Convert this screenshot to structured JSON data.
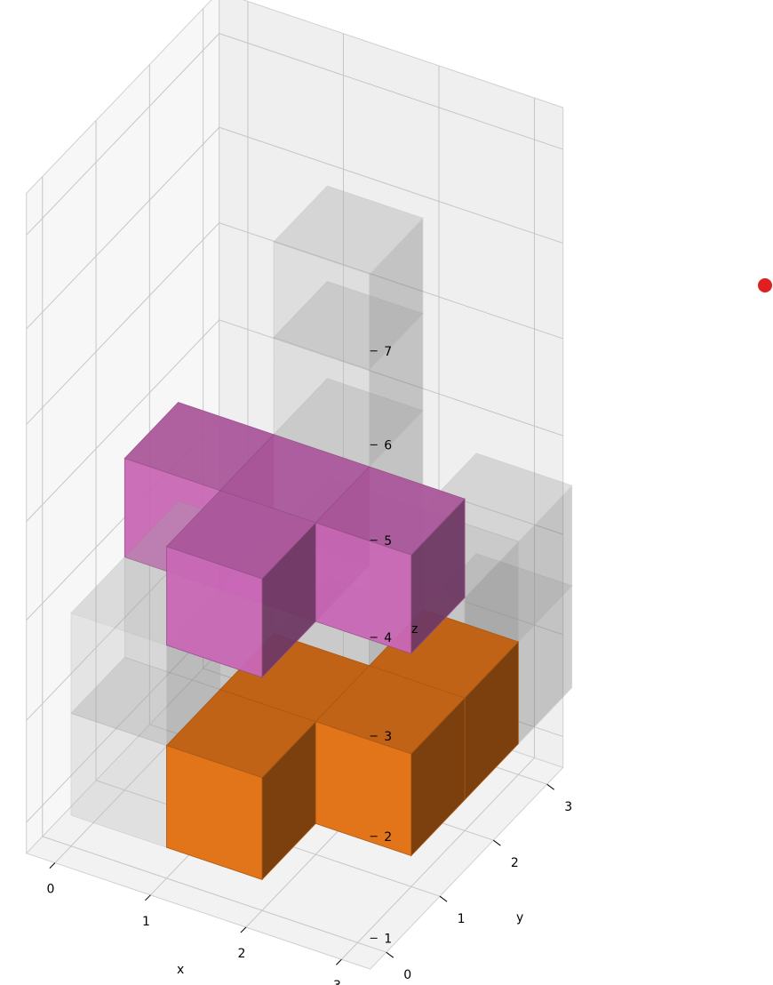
{
  "chart_data": {
    "type": "voxel-3d",
    "title": "",
    "axes": {
      "x": {
        "label": "x",
        "ticks": [
          "0",
          "1",
          "2",
          "3"
        ],
        "lim": [
          0,
          3
        ]
      },
      "y": {
        "label": "y",
        "ticks": [
          "0",
          "1",
          "2",
          "3"
        ],
        "lim": [
          0,
          3
        ]
      },
      "z": {
        "label": "z",
        "ticks": [
          "1",
          "2",
          "3",
          "4",
          "5",
          "6",
          "7"
        ],
        "lim": [
          1,
          7
        ]
      }
    },
    "grid": true,
    "pieces": [
      {
        "name": "orange",
        "color": "#e2751a",
        "opacity": 1.0,
        "cubes": [
          [
            1,
            0,
            1
          ],
          [
            1,
            1,
            1
          ],
          [
            2,
            1,
            1
          ],
          [
            2,
            2,
            1
          ]
        ]
      },
      {
        "name": "pink",
        "color": "#c968b6",
        "opacity": 0.95,
        "cubes": [
          [
            0,
            1,
            3
          ],
          [
            1,
            1,
            3
          ],
          [
            1,
            0,
            3
          ],
          [
            2,
            1,
            3
          ]
        ]
      },
      {
        "name": "gray",
        "color": "#bdbdbd",
        "opacity": 0.32,
        "cubes": [
          [
            0,
            0,
            1
          ],
          [
            0,
            0,
            2
          ],
          [
            0,
            1,
            2
          ],
          [
            1,
            2,
            1
          ],
          [
            1,
            2,
            2
          ],
          [
            2,
            2,
            2
          ],
          [
            2,
            3,
            2
          ],
          [
            2,
            3,
            1
          ],
          [
            1,
            2,
            3
          ],
          [
            1,
            2,
            4
          ],
          [
            1,
            2,
            5
          ]
        ]
      }
    ],
    "marker": {
      "color": "#e02020",
      "shape": "circle"
    }
  }
}
